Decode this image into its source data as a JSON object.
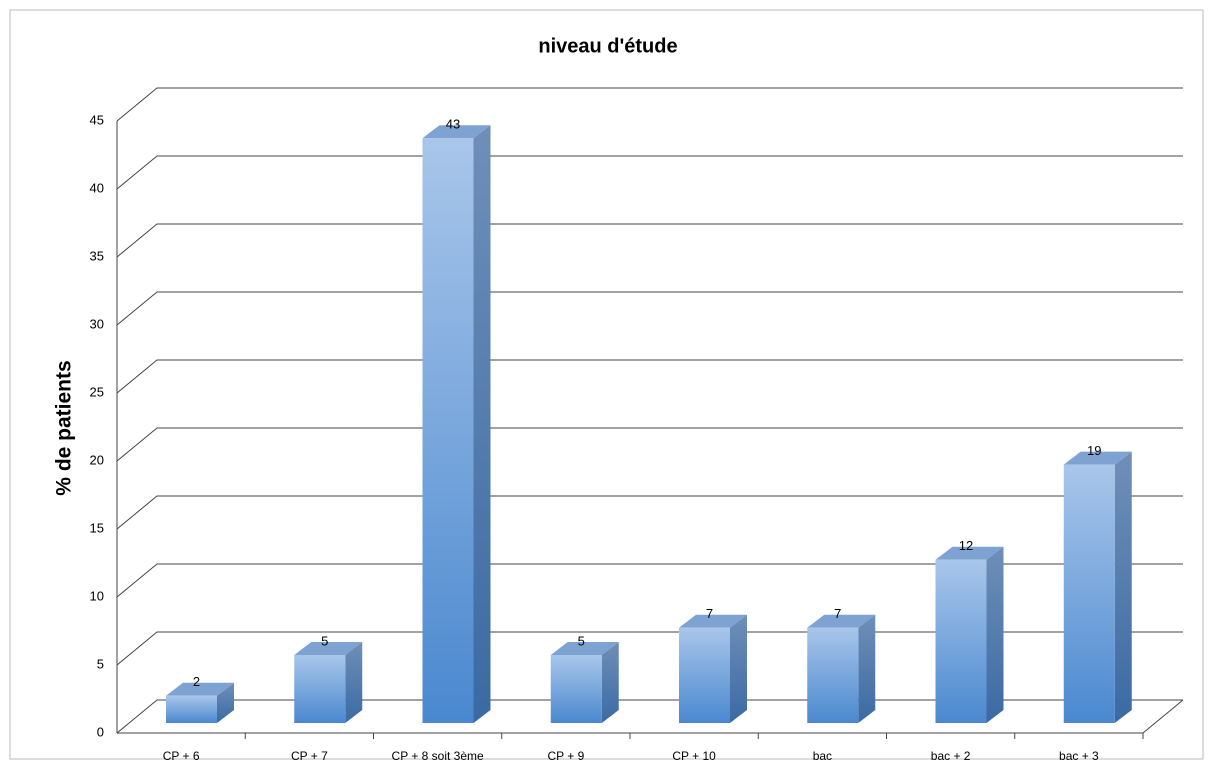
{
  "chart_data": {
    "type": "bar3d",
    "title": "niveau d'étude",
    "y_label": "% de patients",
    "categories": [
      "CP +  6",
      "CP + 7",
      "CP + 8 soit 3ème",
      "CP + 9",
      "CP + 10",
      "bac",
      "bac + 2",
      "bac + 3"
    ],
    "values": [
      2,
      5,
      43,
      5,
      7,
      7,
      12,
      19
    ],
    "color": "#5b93d3",
    "ylim": [
      0,
      45
    ],
    "yticks": [
      0,
      5,
      10,
      15,
      20,
      25,
      30,
      35,
      40,
      45
    ],
    "grid": true
  }
}
